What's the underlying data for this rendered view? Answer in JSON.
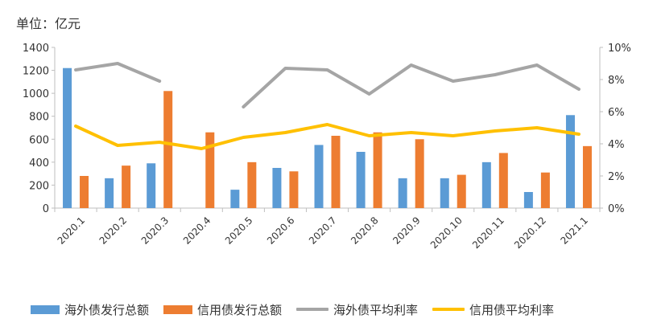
{
  "unit_label": "单位：亿元",
  "chart_data": {
    "type": "bar",
    "categories": [
      "2020.1",
      "2020.2",
      "2020.3",
      "2020.4",
      "2020.5",
      "2020.6",
      "2020.7",
      "2020.8",
      "2020.9",
      "2020.10",
      "2020.11",
      "2020.12",
      "2021.1"
    ],
    "series": [
      {
        "name": "海外债发行总额",
        "kind": "bar",
        "axis": "left",
        "color": "#5b9bd5",
        "values": [
          1220,
          260,
          390,
          0,
          160,
          350,
          550,
          490,
          260,
          260,
          400,
          140,
          810
        ]
      },
      {
        "name": "信用债发行总额",
        "kind": "bar",
        "axis": "left",
        "color": "#ed7d31",
        "values": [
          280,
          370,
          1020,
          660,
          400,
          320,
          630,
          660,
          600,
          290,
          480,
          310,
          540
        ]
      },
      {
        "name": "海外债平均利率",
        "kind": "line",
        "axis": "right",
        "color": "#a5a5a5",
        "values": [
          8.6,
          9.0,
          7.9,
          null,
          6.3,
          8.7,
          8.6,
          7.1,
          8.9,
          7.9,
          8.3,
          8.9,
          7.4
        ]
      },
      {
        "name": "信用债平均利率",
        "kind": "line",
        "axis": "right",
        "color": "#ffc000",
        "values": [
          5.1,
          3.9,
          4.1,
          3.7,
          4.4,
          4.7,
          5.2,
          4.5,
          4.7,
          4.5,
          4.8,
          5.0,
          4.6
        ]
      }
    ],
    "y_left": {
      "ylim": [
        0,
        1400
      ],
      "ticks": [
        "0",
        "200",
        "400",
        "600",
        "800",
        "1000",
        "1200",
        "1400"
      ]
    },
    "y_right": {
      "ylim": [
        0,
        10
      ],
      "ticks": [
        "0%",
        "2%",
        "4%",
        "6%",
        "8%",
        "10%"
      ]
    },
    "grid": false,
    "legend_position": "bottom"
  }
}
